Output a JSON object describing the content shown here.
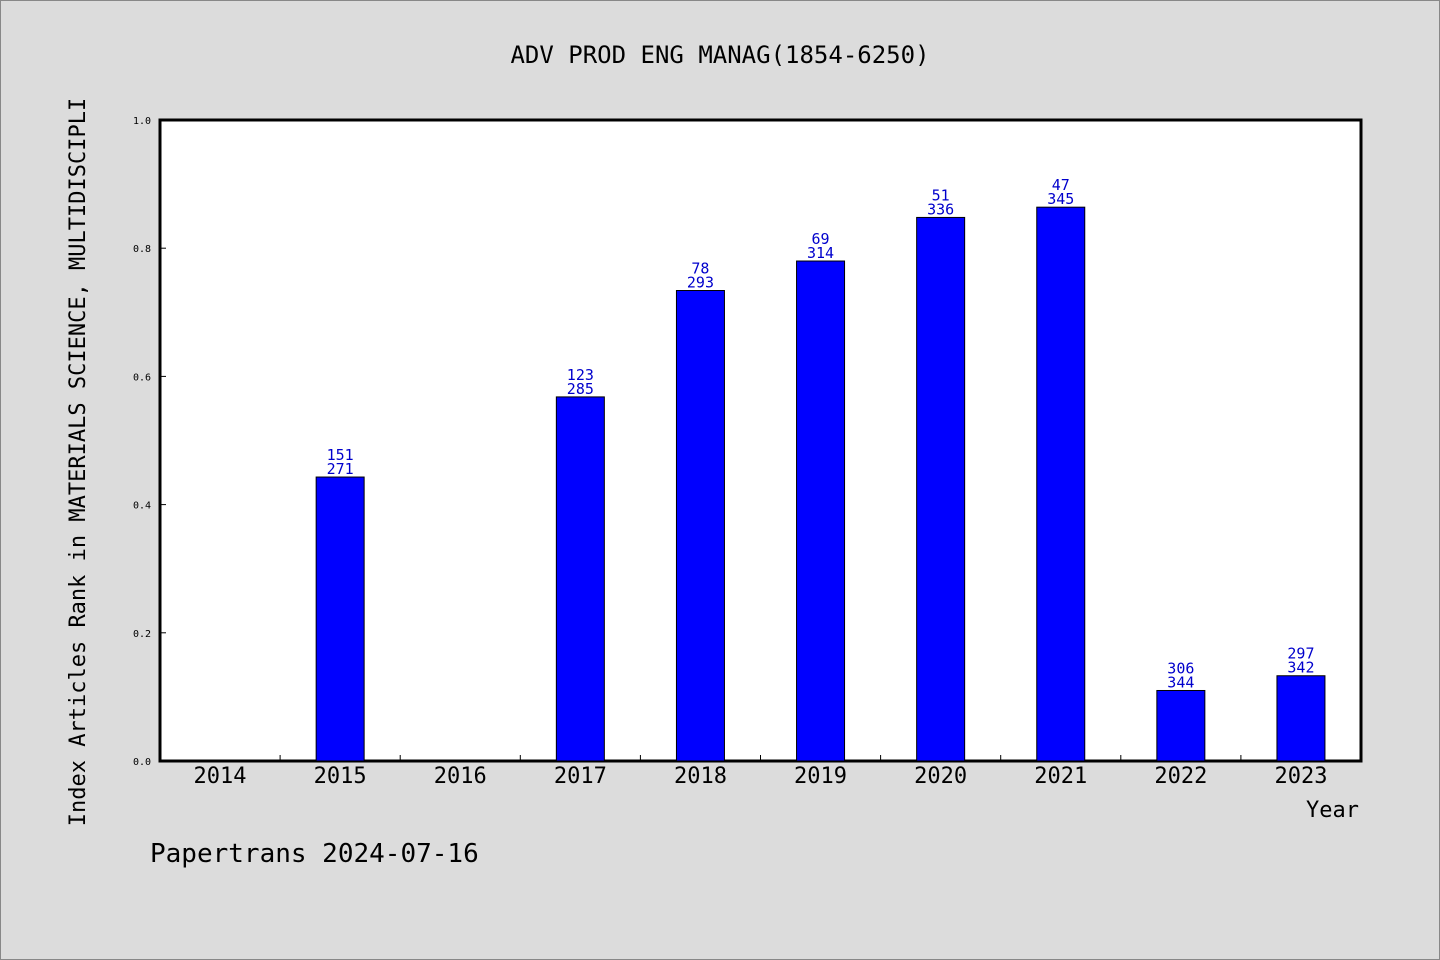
{
  "chart_data": {
    "type": "bar",
    "title": "ADV PROD ENG MANAG(1854-6250)",
    "xlabel": "Year",
    "ylabel": "Index Articles Rank in MATERIALS SCIENCE, MULTIDISCIPLI",
    "ylim": [
      0,
      1.0
    ],
    "yticks": [
      "0.0",
      "0.2",
      "0.4",
      "0.6",
      "0.8",
      "1.0"
    ],
    "categories": [
      "2014",
      "2015",
      "2016",
      "2017",
      "2018",
      "2019",
      "2020",
      "2021",
      "2022",
      "2023"
    ],
    "values": [
      0,
      0.443,
      0,
      0.568,
      0.734,
      0.78,
      0.848,
      0.864,
      0.11,
      0.133
    ],
    "labels": [
      null,
      {
        "rank": "151",
        "total": "271"
      },
      null,
      {
        "rank": "123",
        "total": "285"
      },
      {
        "rank": "78",
        "total": "293"
      },
      {
        "rank": "69",
        "total": "314"
      },
      {
        "rank": "51",
        "total": "336"
      },
      {
        "rank": "47",
        "total": "345"
      },
      {
        "rank": "306",
        "total": "344"
      },
      {
        "rank": "297",
        "total": "342"
      }
    ],
    "bar_color": "#0000ff",
    "label_color": "#0000cc",
    "grid": false,
    "legend": "none"
  },
  "footer": "Papertrans 2024-07-16"
}
